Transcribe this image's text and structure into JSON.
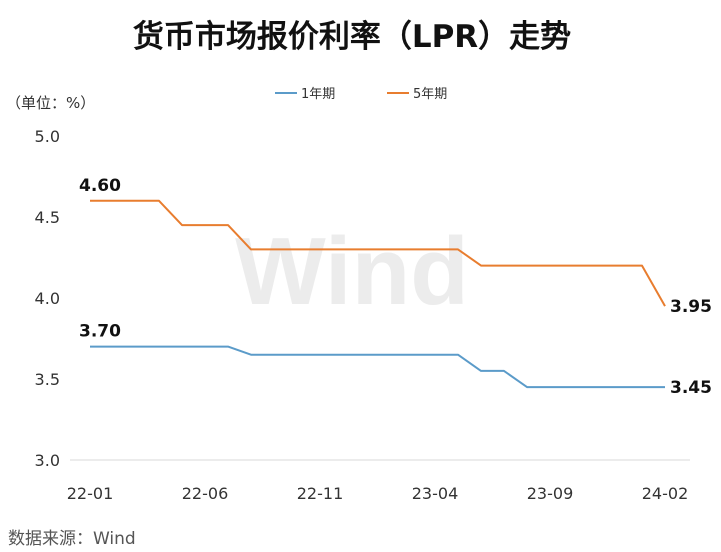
{
  "title": "货币市场报价利率（LPR）走势",
  "unit_label": "（单位：%）",
  "source": "数据来源：Wind",
  "watermark": "Wind",
  "chart_data": {
    "type": "line",
    "title": "货币市场报价利率（LPR）走势",
    "xlabel": "",
    "ylabel": "（单位：%）",
    "ylim": [
      3.0,
      5.0
    ],
    "yticks": [
      "5.0",
      "4.5",
      "4.0",
      "3.5",
      "3.0"
    ],
    "ytick_values": [
      5.0,
      4.5,
      4.0,
      3.5,
      3.0
    ],
    "x": [
      "22-01",
      "22-02",
      "22-03",
      "22-04",
      "22-05",
      "22-06",
      "22-07",
      "22-08",
      "22-09",
      "22-10",
      "22-11",
      "22-12",
      "23-01",
      "23-02",
      "23-03",
      "23-04",
      "23-05",
      "23-06",
      "23-07",
      "23-08",
      "23-09",
      "23-10",
      "23-11",
      "23-12",
      "24-01",
      "24-02"
    ],
    "xtick_labels": [
      "22-01",
      "22-06",
      "22-11",
      "23-04",
      "23-09",
      "24-02"
    ],
    "xtick_index": [
      0,
      5,
      10,
      15,
      20,
      25
    ],
    "grid": false,
    "legend_position": "top",
    "series": [
      {
        "name": "1年期",
        "color": "#5b9bc9",
        "values": [
          3.7,
          3.7,
          3.7,
          3.7,
          3.7,
          3.7,
          3.7,
          3.65,
          3.65,
          3.65,
          3.65,
          3.65,
          3.65,
          3.65,
          3.65,
          3.65,
          3.65,
          3.55,
          3.55,
          3.45,
          3.45,
          3.45,
          3.45,
          3.45,
          3.45,
          3.45
        ],
        "labels": [
          {
            "index": 0,
            "text": "3.70",
            "anchor": "above"
          },
          {
            "index": 25,
            "text": "3.45",
            "anchor": "right"
          }
        ]
      },
      {
        "name": "5年期",
        "color": "#e87d2f",
        "values": [
          4.6,
          4.6,
          4.6,
          4.6,
          4.45,
          4.45,
          4.45,
          4.3,
          4.3,
          4.3,
          4.3,
          4.3,
          4.3,
          4.3,
          4.3,
          4.3,
          4.3,
          4.2,
          4.2,
          4.2,
          4.2,
          4.2,
          4.2,
          4.2,
          4.2,
          3.95
        ],
        "labels": [
          {
            "index": 0,
            "text": "4.60",
            "anchor": "above"
          },
          {
            "index": 25,
            "text": "3.95",
            "anchor": "right"
          }
        ]
      }
    ]
  }
}
